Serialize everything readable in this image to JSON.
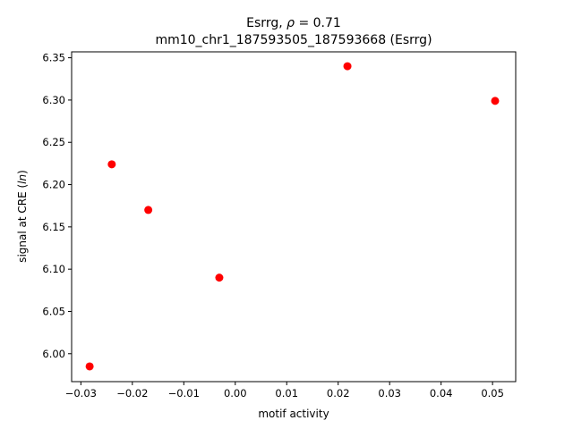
{
  "chart_data": {
    "type": "scatter",
    "title_line1_prefix": "Esrrg, ",
    "title_line1_rho": "ρ",
    "title_line1_suffix": " = 0.71",
    "title_line2": "mm10_chr1_187593505_187593668 (Esrrg)",
    "xlabel": "motif activity",
    "ylabel_prefix": "signal at CRE (",
    "ylabel_italic": "ln",
    "ylabel_suffix": ")",
    "xlim": [
      -0.0318,
      0.0545
    ],
    "ylim": [
      5.967,
      6.357
    ],
    "xticks": [
      -0.03,
      -0.02,
      -0.01,
      0.0,
      0.01,
      0.02,
      0.03,
      0.04,
      0.05
    ],
    "xtick_labels": [
      "−0.03",
      "−0.02",
      "−0.01",
      "0.00",
      "0.01",
      "0.02",
      "0.03",
      "0.04",
      "0.05"
    ],
    "yticks": [
      6.0,
      6.05,
      6.1,
      6.15,
      6.2,
      6.25,
      6.3,
      6.35
    ],
    "ytick_labels": [
      "6.00",
      "6.05",
      "6.10",
      "6.15",
      "6.20",
      "6.25",
      "6.30",
      "6.35"
    ],
    "points": [
      {
        "x": -0.0283,
        "y": 5.985
      },
      {
        "x": -0.024,
        "y": 6.224
      },
      {
        "x": -0.0169,
        "y": 6.17
      },
      {
        "x": -0.0031,
        "y": 6.09
      },
      {
        "x": 0.0218,
        "y": 6.34
      },
      {
        "x": 0.0505,
        "y": 6.299
      }
    ],
    "marker_color": "#ff0000",
    "grid": false
  }
}
